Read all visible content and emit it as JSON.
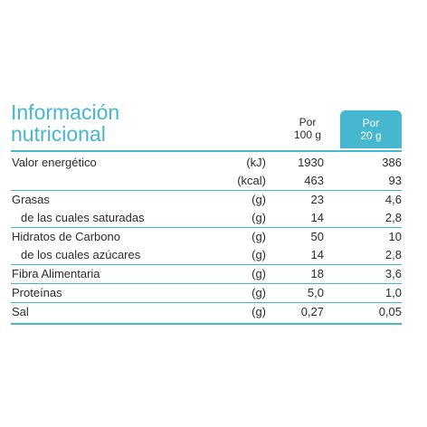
{
  "title": {
    "line1": "Información",
    "line2": "nutricional"
  },
  "columns": {
    "per100": {
      "line1": "Por",
      "line2": "100 g"
    },
    "per20": {
      "line1": "Por",
      "line2": "20 g"
    }
  },
  "rows": [
    {
      "label": "Valor energético",
      "unit": "(kJ)",
      "per100": "1930",
      "per20": "386",
      "indent": false,
      "separator": false
    },
    {
      "label": "",
      "unit": "(kcal)",
      "per100": "463",
      "per20": "93",
      "indent": false,
      "separator": false
    },
    {
      "label": "Grasas",
      "unit": "(g)",
      "per100": "23",
      "per20": "4,6",
      "indent": false,
      "separator": true
    },
    {
      "label": "de las cuales saturadas",
      "unit": "(g)",
      "per100": "14",
      "per20": "2,8",
      "indent": true,
      "separator": false
    },
    {
      "label": "Hidratos de Carbono",
      "unit": "(g)",
      "per100": "50",
      "per20": "10",
      "indent": false,
      "separator": true
    },
    {
      "label": "de los cuales azúcares",
      "unit": "(g)",
      "per100": "14",
      "per20": "2,8",
      "indent": true,
      "separator": false
    },
    {
      "label": "Fibra Alimentaria",
      "unit": "(g)",
      "per100": "18",
      "per20": "3,6",
      "indent": false,
      "separator": true
    },
    {
      "label": "Proteínas",
      "unit": "(g)",
      "per100": "5,0",
      "per20": "1,0",
      "indent": false,
      "separator": true
    },
    {
      "label": "Sal",
      "unit": "(g)",
      "per100": "0,27",
      "per20": "0,05",
      "indent": false,
      "separator": true
    }
  ],
  "colors": {
    "accent": "#47b7cf",
    "text": "#2b2b2b",
    "header_text": "#ffffff"
  }
}
